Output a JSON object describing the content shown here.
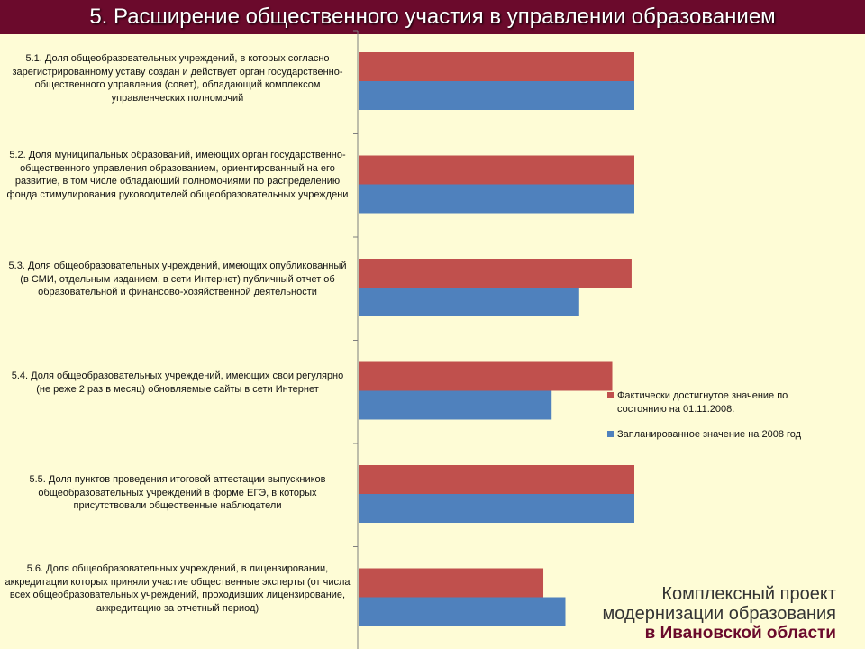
{
  "header": {
    "title": "5. Расширение общественного участия в управлении образованием"
  },
  "colors": {
    "actual": "#c0504d",
    "planned": "#4f81bd",
    "title_bg": "#6b0a2c",
    "background": "#fefcd6"
  },
  "chart_data": {
    "type": "bar",
    "orientation": "horizontal",
    "xlim": [
      0,
      100
    ],
    "grid": false,
    "legend_position": "right",
    "categories": [
      "5.1. Доля общеобразовательных учреждений, в которых согласно зарегистрированному уставу создан и действует орган государственно-общественного управления (совет), обладающий комплексом управленческих полномочий",
      "5.2. Доля муниципальных образований, имеющих орган государственно-общественного управления образованием, ориентированный на его развитие, в том числе обладающий полномочиями по распределению фонда стимулирования руководителей общеобразовательных учреждени",
      "5.3. Доля общеобразовательных учреждений, имеющих опубликованный (в СМИ, отдельным изданием, в сети Интернет) публичный отчет об образовательной и финансово-хозяйственной деятельности",
      "5.4. Доля общеобразовательных учреждений, имеющих свои регулярно (не реже 2 раз в месяц) обновляемые сайты в сети Интернет",
      "5.5. Доля пунктов проведения итоговой аттестации выпускников общеобразовательных учреждений в форме ЕГЭ, в которых присутствовали общественные наблюдатели",
      "5.6. Доля общеобразовательных учреждений, в лицензировании, аккредитации которых приняли участие общественные эксперты (от числа всех общеобразовательных учреждений, проходивших лицензирование, аккредитацию за отчетный период)"
    ],
    "series": [
      {
        "name": "Фактически достигнутое значение по состоянию на 01.11.2008.",
        "color": "#c0504d",
        "values": [
          100,
          100,
          99,
          92,
          100,
          67
        ]
      },
      {
        "name": "Запланированное значение на 2008 год",
        "color": "#4f81bd",
        "values": [
          100,
          100,
          80,
          70,
          100,
          75
        ]
      }
    ]
  },
  "footer": {
    "line1": "Комплексный проект",
    "line2": "модернизации образования",
    "line3": "в Ивановской области"
  }
}
